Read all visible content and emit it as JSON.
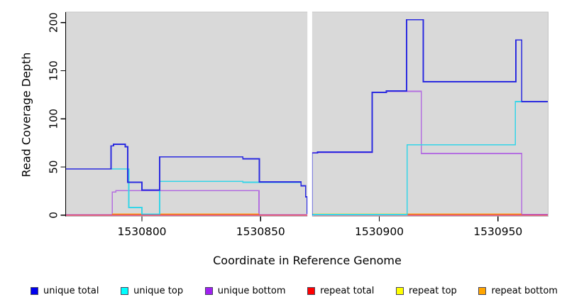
{
  "chart_data": {
    "type": "line",
    "subtype": "step-coverage-plot",
    "title": "",
    "xlabel": "Coordinate in Reference Genome",
    "ylabel": "Read Coverage Depth",
    "x_ticks": [
      1530800,
      1530850,
      1530900,
      1530950
    ],
    "y_ticks": [
      0,
      50,
      100,
      150,
      200
    ],
    "xlim": [
      1530768,
      1530971
    ],
    "ylim": [
      0,
      211
    ],
    "grid": false,
    "legend_position": "bottom",
    "panel_bg": "#d9d9d9",
    "panel_border": "#c4c4c4",
    "gap_band": {
      "from": 1530869.7,
      "to": 1530871.7,
      "color": "#ffffff"
    },
    "draw_order": [
      "repeat top",
      "unique bottom",
      "repeat total",
      "repeat bottom",
      "unique top",
      "unique total"
    ],
    "series": [
      {
        "name": "unique total",
        "color": "#2b2bdf",
        "legend_color": "#0000ee",
        "runs": [
          {
            "points": [
              [
                1530768,
                48
              ],
              [
                1530787,
                72
              ],
              [
                1530788,
                73.5
              ],
              [
                1530793,
                71
              ],
              [
                1530794,
                34
              ],
              [
                1530800,
                26
              ],
              [
                1530807.5,
                60.5
              ],
              [
                1530842.5,
                58.5
              ],
              [
                1530849.5,
                34.5
              ],
              [
                1530867,
                30.5
              ],
              [
                1530869,
                19
              ],
              [
                1530869.6,
                2
              ],
              [
                1530870.2,
                0
              ],
              [
                1530871.6,
                64.5
              ],
              [
                1530874,
                65.5
              ],
              [
                1530897,
                127.5
              ],
              [
                1530903,
                129
              ],
              [
                1530911.5,
                203
              ],
              [
                1530918.5,
                138.5
              ],
              [
                1530957.5,
                182
              ],
              [
                1530960,
                118
              ]
            ],
            "end": 1530971
          }
        ]
      },
      {
        "name": "unique top",
        "color": "#35d5e8",
        "legend_color": "#00ffff",
        "runs": [
          {
            "points": [
              [
                1530768,
                48
              ],
              [
                1530794.5,
                8
              ],
              [
                1530800,
                1
              ],
              [
                1530807.5,
                35
              ],
              [
                1530842.5,
                34
              ],
              [
                1530867,
                30.5
              ],
              [
                1530869,
                19
              ],
              [
                1530869.6,
                2
              ],
              [
                1530870.2,
                0
              ],
              [
                1530872,
                0.5
              ],
              [
                1530911.7,
                73
              ],
              [
                1530957.3,
                118
              ]
            ],
            "end": 1530971
          }
        ]
      },
      {
        "name": "unique bottom",
        "color": "#b46fe0",
        "legend_color": "#a020f0",
        "runs": [
          {
            "points": [
              [
                1530768,
                0.3
              ],
              [
                1530787.5,
                24
              ],
              [
                1530789,
                25.5
              ],
              [
                1530849.3,
                0.3
              ],
              [
                1530870.2,
                0
              ],
              [
                1530871.6,
                65
              ],
              [
                1530897,
                127.5
              ],
              [
                1530903,
                128.5
              ],
              [
                1530917.7,
                64
              ],
              [
                1530960,
                0.5
              ]
            ],
            "end": 1530971
          }
        ]
      },
      {
        "name": "repeat total",
        "color": "#dd3360",
        "legend_color": "#ff0000",
        "runs": [
          {
            "points": [
              [
                1530768,
                0
              ]
            ],
            "end": 1530971
          }
        ]
      },
      {
        "name": "repeat top",
        "color": "#efe030",
        "legend_color": "#ffff00",
        "runs": [
          {
            "points": [
              [
                1530768,
                0
              ],
              [
                1530872,
                0.8
              ],
              [
                1530911.7,
                0
              ]
            ],
            "end": 1530971
          }
        ]
      },
      {
        "name": "repeat bottom",
        "color": "#ff9718",
        "legend_color": "#ffa500",
        "runs": [
          {
            "points": [
              [
                1530787.5,
                1
              ]
            ],
            "end": 1530849.3
          },
          {
            "points": [
              [
                1530911.7,
                1
              ]
            ],
            "end": 1530960
          }
        ]
      }
    ]
  },
  "legend": {
    "items": [
      {
        "label": "unique total"
      },
      {
        "label": "unique top"
      },
      {
        "label": "unique bottom"
      },
      {
        "label": "repeat total"
      },
      {
        "label": "repeat top"
      },
      {
        "label": "repeat bottom"
      }
    ]
  }
}
